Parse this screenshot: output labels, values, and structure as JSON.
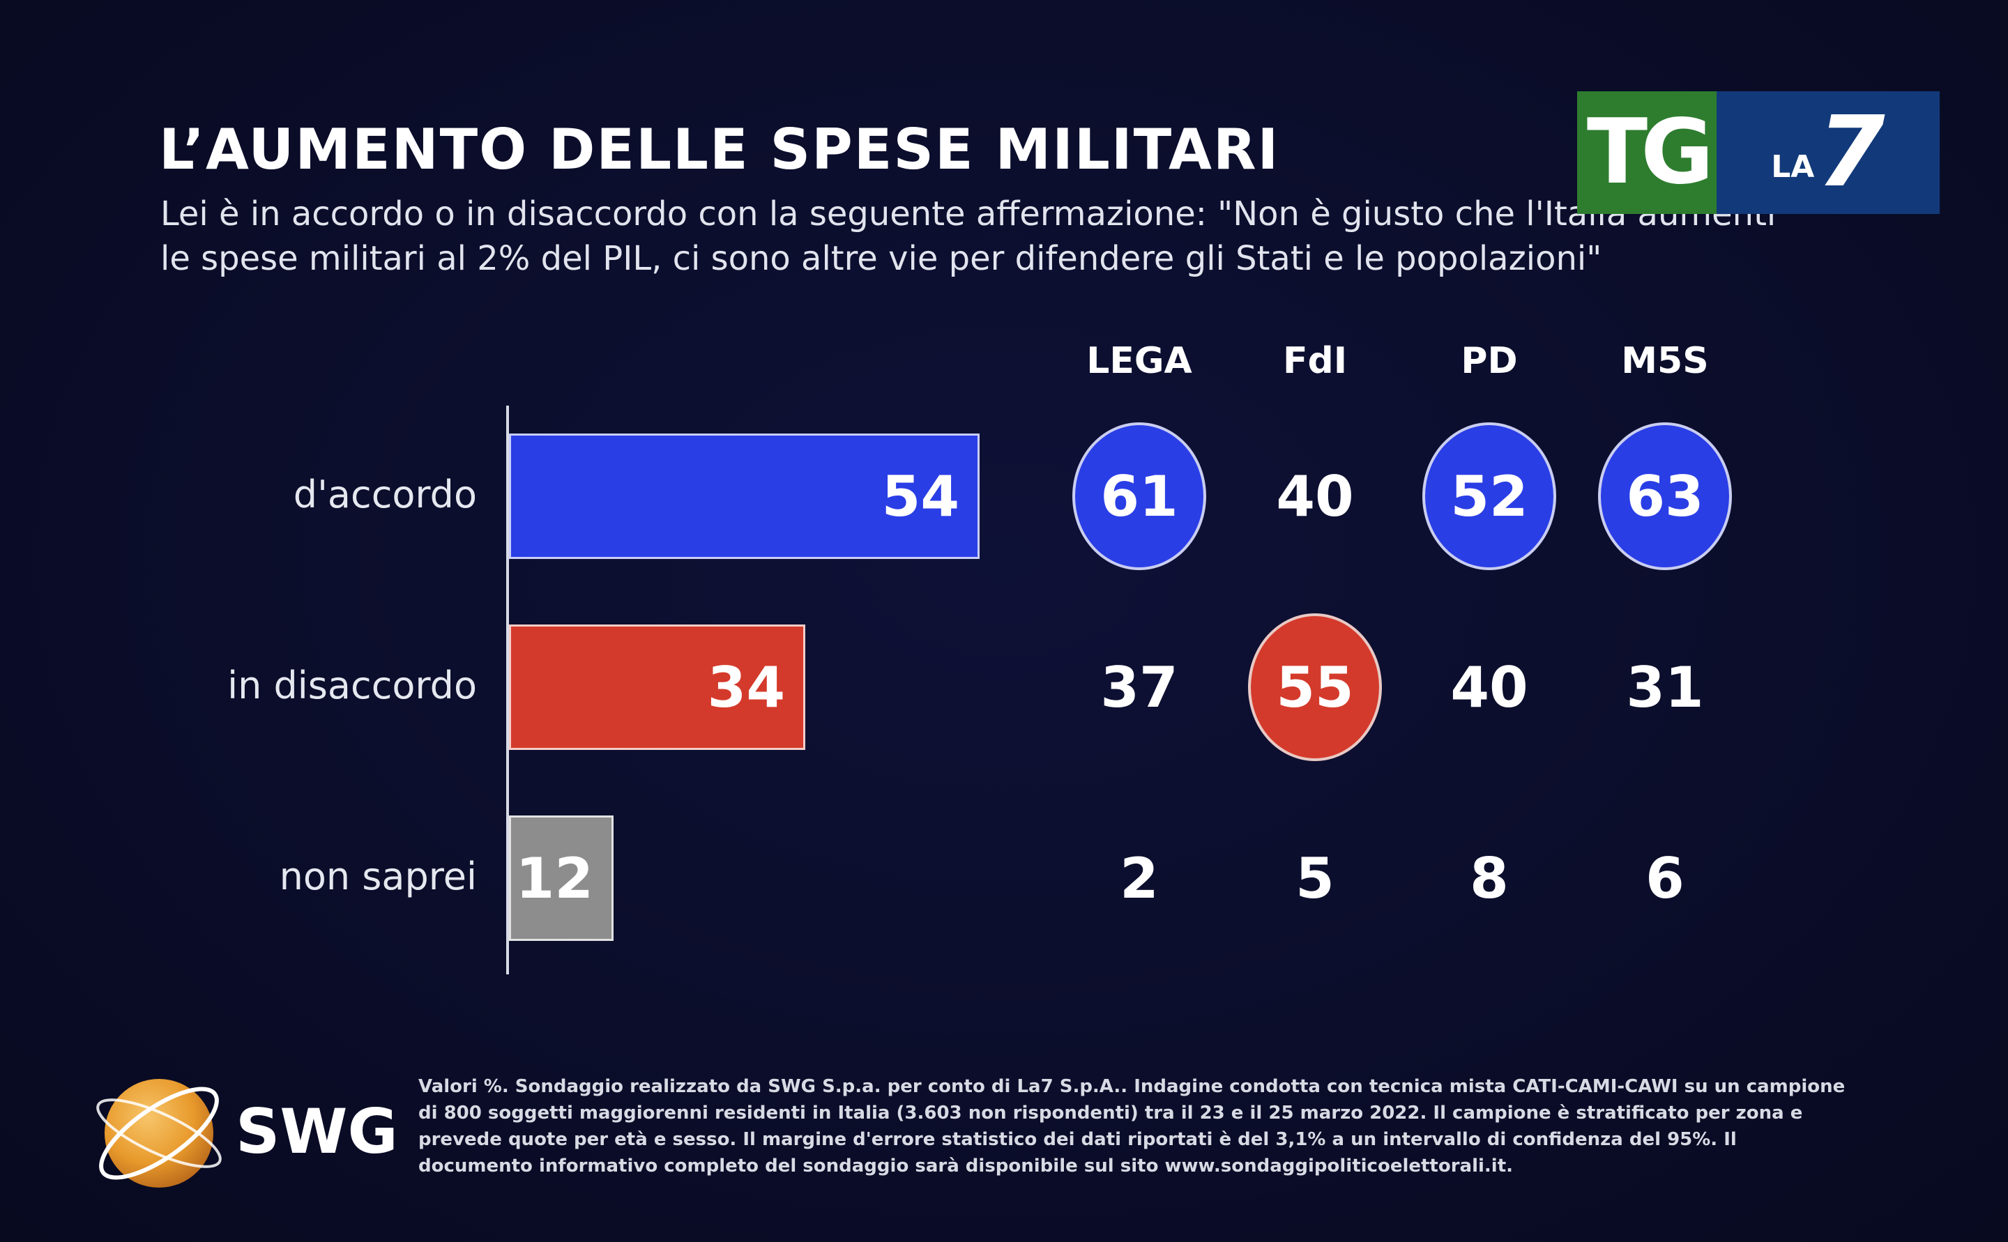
{
  "header": {
    "title": "L’AUMENTO DELLE SPESE MILITARI",
    "subtitle": "Lei è in accordo o in disaccordo con la seguente affermazione: \"Non è giusto che l'Italia aumenti le spese militari al 2% del PIL, ci sono altre vie per difendere gli Stati e le popolazioni\""
  },
  "logo": {
    "tg": "TG",
    "la": "LA",
    "seven": "7"
  },
  "colors": {
    "accordo": "#2a3ee6",
    "disaccordo": "#d43a2b",
    "non_saprei": "#8d8d8d",
    "background": "#0b0d2a"
  },
  "chart_data": [
    {
      "type": "bar",
      "orientation": "horizontal",
      "categories": [
        "d'accordo",
        "in disaccordo",
        "non saprei"
      ],
      "values": [
        54,
        34,
        12
      ],
      "xlim": [
        0,
        100
      ]
    },
    {
      "type": "table",
      "columns": [
        "LEGA",
        "FdI",
        "PD",
        "M5S"
      ],
      "rows": [
        {
          "label": "d'accordo",
          "values": [
            61,
            40,
            52,
            63
          ],
          "highlighted": [
            true,
            false,
            true,
            true
          ]
        },
        {
          "label": "in disaccordo",
          "values": [
            37,
            55,
            40,
            31
          ],
          "highlighted": [
            false,
            true,
            false,
            false
          ]
        },
        {
          "label": "non saprei",
          "values": [
            2,
            5,
            8,
            6
          ],
          "highlighted": [
            false,
            false,
            false,
            false
          ]
        }
      ]
    }
  ],
  "footer": {
    "brand": "SWG",
    "note": "Valori %. Sondaggio realizzato da SWG S.p.a. per conto di La7 S.p.A.. Indagine condotta con tecnica mista CATI-CAMI-CAWI su un campione di 800 soggetti maggiorenni residenti in Italia (3.603 non rispondenti) tra il 23 e il 25 marzo 2022. Il campione è stratificato per zona e prevede quote per età e sesso. Il margine d'errore statistico dei dati riportati è del 3,1% a un intervallo di confidenza del 95%. Il documento informativo completo del sondaggio sarà disponibile sul sito www.sondaggipoliticoelettorali.it."
  }
}
